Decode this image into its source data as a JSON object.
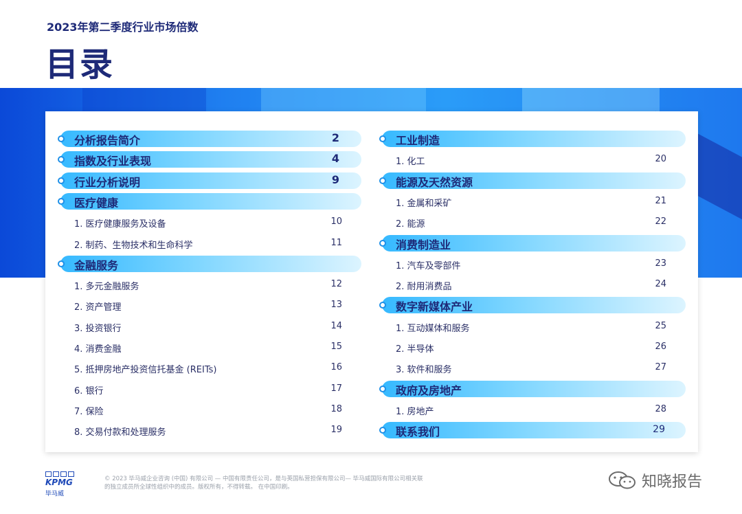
{
  "header": {
    "subtitle": "2023年第二季度行业市场倍数",
    "title": "目录"
  },
  "toc_left": [
    {
      "kind": "section",
      "label": "分析报告简介",
      "page": "2"
    },
    {
      "kind": "section",
      "label": "指数及行业表现",
      "page": "4"
    },
    {
      "kind": "section",
      "label": "行业分析说明",
      "page": "9"
    },
    {
      "kind": "section",
      "label": "医疗健康",
      "page": ""
    },
    {
      "kind": "item",
      "label": "1. 医疗健康服务及设备",
      "page": "10"
    },
    {
      "kind": "item",
      "label": "2. 制药、生物技术和生命科学",
      "page": "11"
    },
    {
      "kind": "section",
      "label": "金融服务",
      "page": ""
    },
    {
      "kind": "item",
      "label": "1. 多元金融服务",
      "page": "12"
    },
    {
      "kind": "item",
      "label": "2. 资产管理",
      "page": "13"
    },
    {
      "kind": "item",
      "label": "3. 投资银行",
      "page": "14"
    },
    {
      "kind": "item",
      "label": "4. 消费金融",
      "page": "15"
    },
    {
      "kind": "item",
      "label": "5. 抵押房地产投资信托基金 (REITs)",
      "page": "16"
    },
    {
      "kind": "item",
      "label": "6. 银行",
      "page": "17"
    },
    {
      "kind": "item",
      "label": "7. 保险",
      "page": "18"
    },
    {
      "kind": "item",
      "label": "8. 交易付款和处理服务",
      "page": "19"
    }
  ],
  "toc_right": [
    {
      "kind": "section",
      "label": "工业制造",
      "page": ""
    },
    {
      "kind": "item",
      "label": "1. 化工",
      "page": "20"
    },
    {
      "kind": "section",
      "label": "能源及天然资源",
      "page": ""
    },
    {
      "kind": "item",
      "label": "1. 金属和采矿",
      "page": "21"
    },
    {
      "kind": "item",
      "label": "2. 能源",
      "page": "22"
    },
    {
      "kind": "section",
      "label": "消费制造业",
      "page": ""
    },
    {
      "kind": "item",
      "label": "1. 汽车及零部件",
      "page": "23"
    },
    {
      "kind": "item",
      "label": "2. 耐用消费品",
      "page": "24"
    },
    {
      "kind": "section",
      "label": "数字新媒体产业",
      "page": ""
    },
    {
      "kind": "item",
      "label": "1. 互动媒体和服务",
      "page": "25"
    },
    {
      "kind": "item",
      "label": "2. 半导体",
      "page": "26"
    },
    {
      "kind": "item",
      "label": "3. 软件和服务",
      "page": "27"
    },
    {
      "kind": "section",
      "label": "政府及房地产",
      "page": ""
    },
    {
      "kind": "item",
      "label": "1. 房地产",
      "page": "28"
    },
    {
      "kind": "section",
      "label": "联系我们",
      "page": "29"
    }
  ],
  "footer": {
    "logo_text": "KPMG",
    "logo_cn": "毕马威",
    "copyright_line1": "© 2023 毕马威企业咨询 (中国) 有限公司 — 中国有限责任公司，是与英国私营担保有限公司— 毕马威国际有限公司相关联",
    "copyright_line2": "的独立成员所全球性组织中的成员。版权所有，不得转载。 在中国印刷。",
    "watermark": "知晓报告"
  },
  "colors": {
    "navy": "#1e2a78",
    "accent": "#36b9ff",
    "band": "#1f7ff0"
  }
}
